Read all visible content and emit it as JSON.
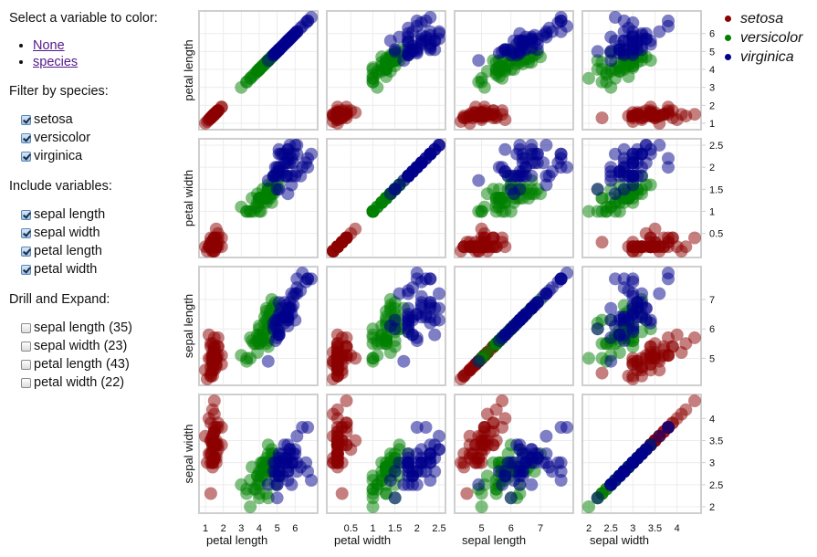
{
  "controls": {
    "color_title": "Select a variable to color:",
    "color_options": [
      "None",
      "species"
    ],
    "filter_title": "Filter by species:",
    "filter_items": [
      {
        "label": "setosa",
        "checked": true
      },
      {
        "label": "versicolor",
        "checked": true
      },
      {
        "label": "virginica",
        "checked": true
      }
    ],
    "include_title": "Include variables:",
    "include_items": [
      {
        "label": "sepal length",
        "checked": true
      },
      {
        "label": "sepal width",
        "checked": true
      },
      {
        "label": "petal length",
        "checked": true
      },
      {
        "label": "petal width",
        "checked": true
      }
    ],
    "drill_title": "Drill and Expand:",
    "drill_items": [
      {
        "label": "sepal length (35)",
        "checked": false
      },
      {
        "label": "sepal width (23)",
        "checked": false
      },
      {
        "label": "petal length (43)",
        "checked": false
      },
      {
        "label": "petal width (22)",
        "checked": false
      }
    ]
  },
  "legend": {
    "items": [
      {
        "label": "setosa",
        "color": "#8b0000"
      },
      {
        "label": "versicolor",
        "color": "#008000"
      },
      {
        "label": "virginica",
        "color": "#00008b"
      }
    ]
  },
  "chart_data": {
    "type": "scatter",
    "title": "",
    "layout": "scatterplot-matrix",
    "variables": [
      "petal length",
      "petal width",
      "sepal length",
      "sepal width"
    ],
    "domains": {
      "petal length": [
        1,
        6.9
      ],
      "petal width": [
        0.1,
        2.5
      ],
      "sepal length": [
        4.3,
        7.9
      ],
      "sepal width": [
        2,
        4.4
      ]
    },
    "ticks": {
      "petal length": [
        1,
        2,
        3,
        4,
        5,
        6
      ],
      "petal width": [
        0.5,
        1,
        1.5,
        2,
        2.5
      ],
      "sepal length": [
        5,
        6,
        7
      ],
      "sepal width": [
        2,
        2.5,
        3,
        3.5,
        4
      ]
    },
    "grid": true,
    "legend_position": "top-right",
    "color_by": "species",
    "species_colors": {
      "setosa": "#8b0000",
      "versicolor": "#008000",
      "virginica": "#00008b"
    },
    "columns": [
      "sepal length",
      "sepal width",
      "petal length",
      "petal width",
      "species"
    ],
    "rows": [
      [
        5.1,
        3.5,
        1.4,
        0.2,
        "setosa"
      ],
      [
        4.9,
        3.0,
        1.4,
        0.2,
        "setosa"
      ],
      [
        4.7,
        3.2,
        1.3,
        0.2,
        "setosa"
      ],
      [
        4.6,
        3.1,
        1.5,
        0.2,
        "setosa"
      ],
      [
        5.0,
        3.6,
        1.4,
        0.2,
        "setosa"
      ],
      [
        5.4,
        3.9,
        1.7,
        0.4,
        "setosa"
      ],
      [
        4.6,
        3.4,
        1.4,
        0.3,
        "setosa"
      ],
      [
        5.0,
        3.4,
        1.5,
        0.2,
        "setosa"
      ],
      [
        4.4,
        2.9,
        1.4,
        0.2,
        "setosa"
      ],
      [
        4.9,
        3.1,
        1.5,
        0.1,
        "setosa"
      ],
      [
        5.4,
        3.7,
        1.5,
        0.2,
        "setosa"
      ],
      [
        4.8,
        3.4,
        1.6,
        0.2,
        "setosa"
      ],
      [
        4.8,
        3.0,
        1.4,
        0.1,
        "setosa"
      ],
      [
        4.3,
        3.0,
        1.1,
        0.1,
        "setosa"
      ],
      [
        5.8,
        4.0,
        1.2,
        0.2,
        "setosa"
      ],
      [
        5.7,
        4.4,
        1.5,
        0.4,
        "setosa"
      ],
      [
        5.4,
        3.9,
        1.3,
        0.4,
        "setosa"
      ],
      [
        5.1,
        3.5,
        1.4,
        0.3,
        "setosa"
      ],
      [
        5.7,
        3.8,
        1.7,
        0.3,
        "setosa"
      ],
      [
        5.1,
        3.8,
        1.5,
        0.3,
        "setosa"
      ],
      [
        5.4,
        3.4,
        1.7,
        0.2,
        "setosa"
      ],
      [
        5.1,
        3.7,
        1.5,
        0.4,
        "setosa"
      ],
      [
        4.6,
        3.6,
        1.0,
        0.2,
        "setosa"
      ],
      [
        5.1,
        3.3,
        1.7,
        0.5,
        "setosa"
      ],
      [
        4.8,
        3.4,
        1.9,
        0.2,
        "setosa"
      ],
      [
        5.0,
        3.0,
        1.6,
        0.2,
        "setosa"
      ],
      [
        5.0,
        3.4,
        1.6,
        0.4,
        "setosa"
      ],
      [
        5.2,
        3.5,
        1.5,
        0.2,
        "setosa"
      ],
      [
        5.2,
        3.4,
        1.4,
        0.2,
        "setosa"
      ],
      [
        4.7,
        3.2,
        1.6,
        0.2,
        "setosa"
      ],
      [
        4.8,
        3.1,
        1.6,
        0.2,
        "setosa"
      ],
      [
        5.4,
        3.4,
        1.5,
        0.4,
        "setosa"
      ],
      [
        5.2,
        4.1,
        1.5,
        0.1,
        "setosa"
      ],
      [
        5.5,
        4.2,
        1.4,
        0.2,
        "setosa"
      ],
      [
        4.9,
        3.1,
        1.5,
        0.2,
        "setosa"
      ],
      [
        5.0,
        3.2,
        1.2,
        0.2,
        "setosa"
      ],
      [
        5.5,
        3.5,
        1.3,
        0.2,
        "setosa"
      ],
      [
        4.9,
        3.6,
        1.4,
        0.1,
        "setosa"
      ],
      [
        4.4,
        3.0,
        1.3,
        0.2,
        "setosa"
      ],
      [
        5.1,
        3.4,
        1.5,
        0.2,
        "setosa"
      ],
      [
        5.0,
        3.5,
        1.3,
        0.3,
        "setosa"
      ],
      [
        4.5,
        2.3,
        1.3,
        0.3,
        "setosa"
      ],
      [
        4.4,
        3.2,
        1.3,
        0.2,
        "setosa"
      ],
      [
        5.0,
        3.5,
        1.6,
        0.6,
        "setosa"
      ],
      [
        5.1,
        3.8,
        1.9,
        0.4,
        "setosa"
      ],
      [
        4.8,
        3.0,
        1.4,
        0.3,
        "setosa"
      ],
      [
        5.1,
        3.8,
        1.6,
        0.2,
        "setosa"
      ],
      [
        4.6,
        3.2,
        1.4,
        0.2,
        "setosa"
      ],
      [
        5.3,
        3.7,
        1.5,
        0.2,
        "setosa"
      ],
      [
        5.0,
        3.3,
        1.4,
        0.2,
        "setosa"
      ],
      [
        7.0,
        3.2,
        4.7,
        1.4,
        "versicolor"
      ],
      [
        6.4,
        3.2,
        4.5,
        1.5,
        "versicolor"
      ],
      [
        6.9,
        3.1,
        4.9,
        1.5,
        "versicolor"
      ],
      [
        5.5,
        2.3,
        4.0,
        1.3,
        "versicolor"
      ],
      [
        6.5,
        2.8,
        4.6,
        1.5,
        "versicolor"
      ],
      [
        5.7,
        2.8,
        4.5,
        1.3,
        "versicolor"
      ],
      [
        6.3,
        3.3,
        4.7,
        1.6,
        "versicolor"
      ],
      [
        4.9,
        2.4,
        3.3,
        1.0,
        "versicolor"
      ],
      [
        6.6,
        2.9,
        4.6,
        1.3,
        "versicolor"
      ],
      [
        5.2,
        2.7,
        3.9,
        1.4,
        "versicolor"
      ],
      [
        5.0,
        2.0,
        3.5,
        1.0,
        "versicolor"
      ],
      [
        5.9,
        3.0,
        4.2,
        1.5,
        "versicolor"
      ],
      [
        6.0,
        2.2,
        4.0,
        1.0,
        "versicolor"
      ],
      [
        6.1,
        2.9,
        4.7,
        1.4,
        "versicolor"
      ],
      [
        5.6,
        2.9,
        3.6,
        1.3,
        "versicolor"
      ],
      [
        6.7,
        3.1,
        4.4,
        1.4,
        "versicolor"
      ],
      [
        5.6,
        3.0,
        4.5,
        1.5,
        "versicolor"
      ],
      [
        5.8,
        2.7,
        4.1,
        1.0,
        "versicolor"
      ],
      [
        6.2,
        2.2,
        4.5,
        1.5,
        "versicolor"
      ],
      [
        5.6,
        2.5,
        3.9,
        1.1,
        "versicolor"
      ],
      [
        5.9,
        3.2,
        4.8,
        1.8,
        "versicolor"
      ],
      [
        6.1,
        2.8,
        4.0,
        1.3,
        "versicolor"
      ],
      [
        6.3,
        2.5,
        4.9,
        1.5,
        "versicolor"
      ],
      [
        6.1,
        2.8,
        4.7,
        1.2,
        "versicolor"
      ],
      [
        6.4,
        2.9,
        4.3,
        1.3,
        "versicolor"
      ],
      [
        6.6,
        3.0,
        4.4,
        1.4,
        "versicolor"
      ],
      [
        6.8,
        2.8,
        4.8,
        1.4,
        "versicolor"
      ],
      [
        6.7,
        3.0,
        5.0,
        1.7,
        "versicolor"
      ],
      [
        6.0,
        2.9,
        4.5,
        1.5,
        "versicolor"
      ],
      [
        5.7,
        2.6,
        3.5,
        1.0,
        "versicolor"
      ],
      [
        5.5,
        2.4,
        3.8,
        1.1,
        "versicolor"
      ],
      [
        5.5,
        2.4,
        3.7,
        1.0,
        "versicolor"
      ],
      [
        5.8,
        2.7,
        3.9,
        1.2,
        "versicolor"
      ],
      [
        6.0,
        2.7,
        5.1,
        1.6,
        "versicolor"
      ],
      [
        5.4,
        3.0,
        4.5,
        1.5,
        "versicolor"
      ],
      [
        6.0,
        3.4,
        4.5,
        1.6,
        "versicolor"
      ],
      [
        6.7,
        3.1,
        4.7,
        1.5,
        "versicolor"
      ],
      [
        6.3,
        2.3,
        4.4,
        1.3,
        "versicolor"
      ],
      [
        5.6,
        3.0,
        4.1,
        1.3,
        "versicolor"
      ],
      [
        5.5,
        2.5,
        4.0,
        1.3,
        "versicolor"
      ],
      [
        5.5,
        2.6,
        4.4,
        1.2,
        "versicolor"
      ],
      [
        6.1,
        3.0,
        4.6,
        1.4,
        "versicolor"
      ],
      [
        5.8,
        2.6,
        4.0,
        1.2,
        "versicolor"
      ],
      [
        5.0,
        2.3,
        3.3,
        1.0,
        "versicolor"
      ],
      [
        5.6,
        2.7,
        4.2,
        1.3,
        "versicolor"
      ],
      [
        5.7,
        3.0,
        4.2,
        1.2,
        "versicolor"
      ],
      [
        5.7,
        2.9,
        4.2,
        1.3,
        "versicolor"
      ],
      [
        6.2,
        2.9,
        4.3,
        1.3,
        "versicolor"
      ],
      [
        5.1,
        2.5,
        3.0,
        1.1,
        "versicolor"
      ],
      [
        5.7,
        2.8,
        4.1,
        1.3,
        "versicolor"
      ],
      [
        6.3,
        3.3,
        6.0,
        2.5,
        "virginica"
      ],
      [
        5.8,
        2.7,
        5.1,
        1.9,
        "virginica"
      ],
      [
        7.1,
        3.0,
        5.9,
        2.1,
        "virginica"
      ],
      [
        6.3,
        2.9,
        5.6,
        1.8,
        "virginica"
      ],
      [
        6.5,
        3.0,
        5.8,
        2.2,
        "virginica"
      ],
      [
        7.6,
        3.0,
        6.6,
        2.1,
        "virginica"
      ],
      [
        4.9,
        2.5,
        4.5,
        1.7,
        "virginica"
      ],
      [
        7.3,
        2.9,
        6.3,
        1.8,
        "virginica"
      ],
      [
        6.7,
        2.5,
        5.8,
        1.8,
        "virginica"
      ],
      [
        7.2,
        3.6,
        6.1,
        2.5,
        "virginica"
      ],
      [
        6.5,
        3.2,
        5.1,
        2.0,
        "virginica"
      ],
      [
        6.4,
        2.7,
        5.3,
        1.9,
        "virginica"
      ],
      [
        6.8,
        3.0,
        5.5,
        2.1,
        "virginica"
      ],
      [
        5.7,
        2.5,
        5.0,
        2.0,
        "virginica"
      ],
      [
        5.8,
        2.8,
        5.1,
        2.4,
        "virginica"
      ],
      [
        6.4,
        3.2,
        5.3,
        2.3,
        "virginica"
      ],
      [
        6.5,
        3.0,
        5.5,
        1.8,
        "virginica"
      ],
      [
        7.7,
        3.8,
        6.7,
        2.2,
        "virginica"
      ],
      [
        7.7,
        2.6,
        6.9,
        2.3,
        "virginica"
      ],
      [
        6.0,
        2.2,
        5.0,
        1.5,
        "virginica"
      ],
      [
        6.9,
        3.2,
        5.7,
        2.3,
        "virginica"
      ],
      [
        5.6,
        2.8,
        4.9,
        2.0,
        "virginica"
      ],
      [
        7.7,
        2.8,
        6.7,
        2.0,
        "virginica"
      ],
      [
        6.3,
        2.7,
        4.9,
        1.8,
        "virginica"
      ],
      [
        6.7,
        3.3,
        5.7,
        2.1,
        "virginica"
      ],
      [
        7.2,
        3.2,
        6.0,
        1.8,
        "virginica"
      ],
      [
        6.2,
        2.8,
        4.8,
        1.8,
        "virginica"
      ],
      [
        6.1,
        3.0,
        4.9,
        1.8,
        "virginica"
      ],
      [
        6.4,
        2.8,
        5.6,
        2.1,
        "virginica"
      ],
      [
        7.2,
        3.0,
        5.8,
        1.6,
        "virginica"
      ],
      [
        7.4,
        2.8,
        6.1,
        1.9,
        "virginica"
      ],
      [
        7.9,
        3.8,
        6.4,
        2.0,
        "virginica"
      ],
      [
        6.4,
        2.8,
        5.6,
        2.2,
        "virginica"
      ],
      [
        6.3,
        2.8,
        5.1,
        1.5,
        "virginica"
      ],
      [
        6.1,
        2.6,
        5.6,
        1.4,
        "virginica"
      ],
      [
        7.7,
        3.0,
        6.1,
        2.3,
        "virginica"
      ],
      [
        6.3,
        3.4,
        5.6,
        2.4,
        "virginica"
      ],
      [
        6.4,
        3.1,
        5.5,
        1.8,
        "virginica"
      ],
      [
        6.0,
        3.0,
        4.8,
        1.8,
        "virginica"
      ],
      [
        6.9,
        3.1,
        5.4,
        2.1,
        "virginica"
      ],
      [
        6.7,
        3.1,
        5.6,
        2.4,
        "virginica"
      ],
      [
        6.9,
        3.1,
        5.1,
        2.3,
        "virginica"
      ],
      [
        5.8,
        2.7,
        5.1,
        1.9,
        "virginica"
      ],
      [
        6.8,
        3.2,
        5.9,
        2.3,
        "virginica"
      ],
      [
        6.7,
        3.3,
        5.7,
        2.5,
        "virginica"
      ],
      [
        6.7,
        3.0,
        5.2,
        2.3,
        "virginica"
      ],
      [
        6.3,
        2.5,
        5.0,
        1.9,
        "virginica"
      ],
      [
        6.5,
        3.0,
        5.2,
        2.0,
        "virginica"
      ],
      [
        6.2,
        3.4,
        5.4,
        2.3,
        "virginica"
      ],
      [
        5.9,
        3.0,
        5.1,
        1.8,
        "virginica"
      ]
    ]
  }
}
